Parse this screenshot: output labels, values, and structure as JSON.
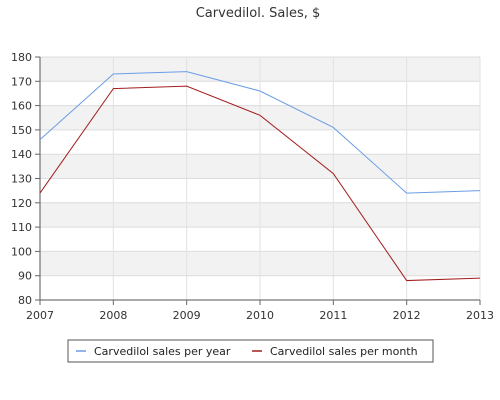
{
  "chart_data": {
    "type": "line",
    "title": "Carvedilol. Sales, $",
    "x": [
      "2007",
      "2008",
      "2009",
      "2010",
      "2011",
      "2012",
      "2013"
    ],
    "series": [
      {
        "name": "Carvedilol sales per year",
        "values": [
          146,
          173,
          174,
          166,
          151,
          124,
          125
        ],
        "color": "#6a9ee6"
      },
      {
        "name": "Carvedilol sales per month",
        "values": [
          124,
          167,
          168,
          156,
          132,
          88,
          89
        ],
        "color": "#a31d1d"
      }
    ],
    "y_ticks": [
      "80",
      "90",
      "100",
      "110",
      "120",
      "130",
      "140",
      "150",
      "160",
      "170",
      "180"
    ],
    "ylim": [
      80,
      180
    ],
    "grid": true,
    "legend_position": "bottom"
  }
}
